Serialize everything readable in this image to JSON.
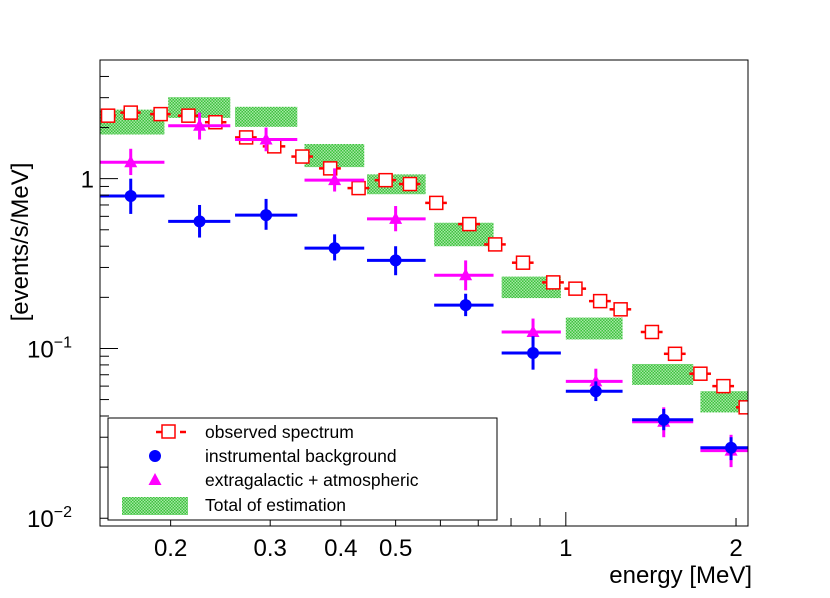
{
  "chart_data": {
    "type": "scatter",
    "title": "",
    "xlabel": "energy [MeV]",
    "ylabel": "[events/s/MeV]",
    "xscale": "log",
    "yscale": "log",
    "xlim": [
      0.15,
      2.1
    ],
    "ylim": [
      0.009,
      5.0
    ],
    "x_ticks": [
      {
        "value": 0.2,
        "label": "0.2"
      },
      {
        "value": 0.3,
        "label": "0.3"
      },
      {
        "value": 0.4,
        "label": "0.4"
      },
      {
        "value": 0.5,
        "label": "0.5"
      },
      {
        "value": 1,
        "label": "1"
      },
      {
        "value": 2,
        "label": "2"
      }
    ],
    "y_ticks": [
      {
        "value": 1,
        "base": "1",
        "exp": ""
      },
      {
        "value": 0.1,
        "base": "10",
        "exp": "−1"
      },
      {
        "value": 0.01,
        "base": "10",
        "exp": "−2"
      }
    ],
    "legend_position": "bottom-left",
    "legend": {
      "observed": "observed spectrum",
      "instrumental": "instrumental background",
      "extragalactic": "extragalactic + atmospheric",
      "total": "Total of estimation"
    },
    "colors": {
      "observed": "#ff0000",
      "instrumental": "#0000ff",
      "extragalactic": "#ff00ff",
      "total": "#3cc33c"
    },
    "observed": [
      {
        "x": 0.155,
        "xlo": 0.151,
        "xhi": 0.16,
        "y": 2.35
      },
      {
        "x": 0.17,
        "xlo": 0.163,
        "xhi": 0.177,
        "y": 2.45
      },
      {
        "x": 0.192,
        "xlo": 0.184,
        "xhi": 0.2,
        "y": 2.4
      },
      {
        "x": 0.215,
        "xlo": 0.206,
        "xhi": 0.224,
        "y": 2.35
      },
      {
        "x": 0.24,
        "xlo": 0.23,
        "xhi": 0.251,
        "y": 2.15
      },
      {
        "x": 0.272,
        "xlo": 0.26,
        "xhi": 0.284,
        "y": 1.75
      },
      {
        "x": 0.305,
        "xlo": 0.291,
        "xhi": 0.319,
        "y": 1.55
      },
      {
        "x": 0.342,
        "xlo": 0.327,
        "xhi": 0.357,
        "y": 1.35
      },
      {
        "x": 0.383,
        "xlo": 0.366,
        "xhi": 0.4,
        "y": 1.15
      },
      {
        "x": 0.43,
        "xlo": 0.411,
        "xhi": 0.449,
        "y": 0.88
      },
      {
        "x": 0.48,
        "xlo": 0.459,
        "xhi": 0.501,
        "y": 0.98
      },
      {
        "x": 0.53,
        "xlo": 0.507,
        "xhi": 0.553,
        "y": 0.93
      },
      {
        "x": 0.59,
        "xlo": 0.564,
        "xhi": 0.616,
        "y": 0.72
      },
      {
        "x": 0.675,
        "xlo": 0.645,
        "xhi": 0.705,
        "y": 0.54
      },
      {
        "x": 0.75,
        "xlo": 0.717,
        "xhi": 0.783,
        "y": 0.41
      },
      {
        "x": 0.84,
        "xlo": 0.803,
        "xhi": 0.877,
        "y": 0.32
      },
      {
        "x": 0.95,
        "xlo": 0.908,
        "xhi": 0.992,
        "y": 0.245
      },
      {
        "x": 1.04,
        "xlo": 0.994,
        "xhi": 1.086,
        "y": 0.225
      },
      {
        "x": 1.15,
        "xlo": 1.099,
        "xhi": 1.201,
        "y": 0.19
      },
      {
        "x": 1.25,
        "xlo": 1.195,
        "xhi": 1.305,
        "y": 0.17
      },
      {
        "x": 1.42,
        "xlo": 1.357,
        "xhi": 1.483,
        "y": 0.125
      },
      {
        "x": 1.56,
        "xlo": 1.491,
        "xhi": 1.629,
        "y": 0.093
      },
      {
        "x": 1.73,
        "xlo": 1.654,
        "xhi": 1.806,
        "y": 0.071
      },
      {
        "x": 1.9,
        "xlo": 1.816,
        "xhi": 1.984,
        "y": 0.06
      },
      {
        "x": 2.08,
        "xlo": 2.0,
        "xhi": 2.16,
        "y": 0.045
      }
    ],
    "instrumental": [
      {
        "x": 0.17,
        "xlo": 0.15,
        "xhi": 0.195,
        "y": 0.79,
        "ylo": 0.62,
        "yhi": 1.0
      },
      {
        "x": 0.225,
        "xlo": 0.198,
        "xhi": 0.255,
        "y": 0.56,
        "ylo": 0.45,
        "yhi": 0.7
      },
      {
        "x": 0.295,
        "xlo": 0.26,
        "xhi": 0.335,
        "y": 0.61,
        "ylo": 0.5,
        "yhi": 0.76
      },
      {
        "x": 0.39,
        "xlo": 0.345,
        "xhi": 0.44,
        "y": 0.39,
        "ylo": 0.33,
        "yhi": 0.47
      },
      {
        "x": 0.5,
        "xlo": 0.445,
        "xhi": 0.565,
        "y": 0.33,
        "ylo": 0.27,
        "yhi": 0.4
      },
      {
        "x": 0.665,
        "xlo": 0.585,
        "xhi": 0.745,
        "y": 0.18,
        "ylo": 0.155,
        "yhi": 0.21
      },
      {
        "x": 0.875,
        "xlo": 0.77,
        "xhi": 0.98,
        "y": 0.094,
        "ylo": 0.075,
        "yhi": 0.118
      },
      {
        "x": 1.13,
        "xlo": 1.0,
        "xhi": 1.26,
        "y": 0.056,
        "ylo": 0.049,
        "yhi": 0.064
      },
      {
        "x": 1.49,
        "xlo": 1.31,
        "xhi": 1.68,
        "y": 0.038,
        "ylo": 0.033,
        "yhi": 0.044
      },
      {
        "x": 1.96,
        "xlo": 1.73,
        "xhi": 2.2,
        "y": 0.026,
        "ylo": 0.022,
        "yhi": 0.03
      }
    ],
    "extragalactic": [
      {
        "x": 0.17,
        "xlo": 0.15,
        "xhi": 0.195,
        "y": 1.25,
        "ylo": 1.05,
        "yhi": 1.5
      },
      {
        "x": 0.225,
        "xlo": 0.198,
        "xhi": 0.255,
        "y": 2.05,
        "ylo": 1.7,
        "yhi": 2.45
      },
      {
        "x": 0.295,
        "xlo": 0.26,
        "xhi": 0.335,
        "y": 1.7,
        "ylo": 1.45,
        "yhi": 2.0
      },
      {
        "x": 0.39,
        "xlo": 0.345,
        "xhi": 0.44,
        "y": 0.98,
        "ylo": 0.84,
        "yhi": 1.15
      },
      {
        "x": 0.5,
        "xlo": 0.445,
        "xhi": 0.565,
        "y": 0.58,
        "ylo": 0.49,
        "yhi": 0.69
      },
      {
        "x": 0.665,
        "xlo": 0.585,
        "xhi": 0.745,
        "y": 0.27,
        "ylo": 0.22,
        "yhi": 0.33
      },
      {
        "x": 0.875,
        "xlo": 0.77,
        "xhi": 0.98,
        "y": 0.125,
        "ylo": 0.105,
        "yhi": 0.15
      },
      {
        "x": 1.13,
        "xlo": 1.0,
        "xhi": 1.26,
        "y": 0.064,
        "ylo": 0.054,
        "yhi": 0.076
      },
      {
        "x": 1.49,
        "xlo": 1.31,
        "xhi": 1.68,
        "y": 0.037,
        "ylo": 0.03,
        "yhi": 0.045
      },
      {
        "x": 1.96,
        "xlo": 1.73,
        "xhi": 2.2,
        "y": 0.025,
        "ylo": 0.02,
        "yhi": 0.031
      }
    ],
    "total": [
      {
        "xlo": 0.15,
        "xhi": 0.195,
        "ylo": 1.82,
        "yhi": 2.55
      },
      {
        "xlo": 0.198,
        "xhi": 0.255,
        "ylo": 2.28,
        "yhi": 3.02
      },
      {
        "xlo": 0.26,
        "xhi": 0.335,
        "ylo": 2.02,
        "yhi": 2.65
      },
      {
        "xlo": 0.345,
        "xhi": 0.44,
        "ylo": 1.17,
        "yhi": 1.6
      },
      {
        "xlo": 0.445,
        "xhi": 0.565,
        "ylo": 0.81,
        "yhi": 1.06
      },
      {
        "xlo": 0.585,
        "xhi": 0.745,
        "ylo": 0.4,
        "yhi": 0.55
      },
      {
        "xlo": 0.77,
        "xhi": 0.98,
        "ylo": 0.198,
        "yhi": 0.265
      },
      {
        "xlo": 1.0,
        "xhi": 1.26,
        "ylo": 0.113,
        "yhi": 0.152
      },
      {
        "xlo": 1.31,
        "xhi": 1.68,
        "ylo": 0.061,
        "yhi": 0.081
      },
      {
        "xlo": 1.73,
        "xhi": 2.2,
        "ylo": 0.042,
        "yhi": 0.056
      }
    ]
  }
}
